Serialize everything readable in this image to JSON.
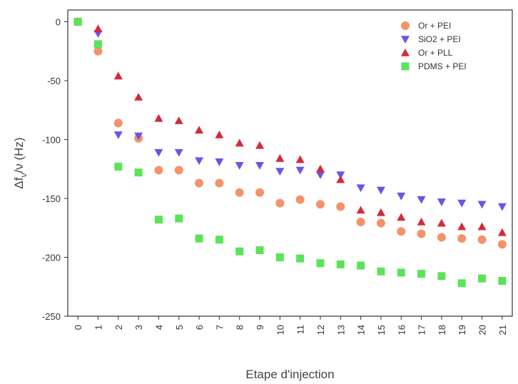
{
  "chart_data": {
    "type": "scatter",
    "xlabel": "Etape d'injection",
    "ylabel": "Δf_ν/ν (Hz)",
    "ylabel_main": "Δf",
    "ylabel_sub": "ν",
    "ylabel_rest": "/ν (Hz)",
    "xlim": [
      -0.5,
      21.5
    ],
    "ylim": [
      -250,
      10
    ],
    "x_ticks": [
      0,
      1,
      2,
      3,
      4,
      5,
      6,
      7,
      8,
      9,
      10,
      11,
      12,
      13,
      14,
      15,
      16,
      17,
      18,
      19,
      20,
      21
    ],
    "y_ticks": [
      0,
      -50,
      -100,
      -150,
      -200,
      -250
    ],
    "grid": false,
    "legend_position": "top-right",
    "x": [
      0,
      1,
      2,
      3,
      4,
      5,
      6,
      7,
      8,
      9,
      10,
      11,
      12,
      13,
      14,
      15,
      16,
      17,
      18,
      19,
      20,
      21
    ],
    "series": [
      {
        "name": "Or  + PEI",
        "marker": "circle",
        "color": "#f4926a",
        "values": [
          0,
          -25,
          -86,
          -99,
          -126,
          -126,
          -137,
          -137,
          -145,
          -145,
          -154,
          -151,
          -155,
          -157,
          -170,
          -171,
          -178,
          -180,
          -183,
          -184,
          -185,
          -189
        ]
      },
      {
        "name": "SiO2 + PEI",
        "marker": "triangle-down",
        "color": "#6a54e8",
        "values": [
          0,
          -10,
          -96,
          -97,
          -111,
          -111,
          -118,
          -119,
          -122,
          -122,
          -127,
          -126,
          -130,
          -130,
          -141,
          -143,
          -148,
          -151,
          -153,
          -154,
          -155,
          -157
        ]
      },
      {
        "name": "Or  + PLL",
        "marker": "triangle-up",
        "color": "#d42a3a",
        "values": [
          0,
          -6,
          -46,
          -64,
          -82,
          -84,
          -92,
          -96,
          -103,
          -105,
          -116,
          -117,
          -125,
          -134,
          -160,
          -162,
          -166,
          -170,
          -171,
          -174,
          -174,
          -179
        ]
      },
      {
        "name": "PDMS + PEI",
        "marker": "square",
        "color": "#5be35a",
        "values": [
          0,
          -19,
          -123,
          -128,
          -168,
          -167,
          -184,
          -185,
          -195,
          -194,
          -200,
          -201,
          -205,
          -206,
          -207,
          -212,
          -213,
          -214,
          -216,
          -222,
          -218,
          -220
        ]
      }
    ]
  }
}
